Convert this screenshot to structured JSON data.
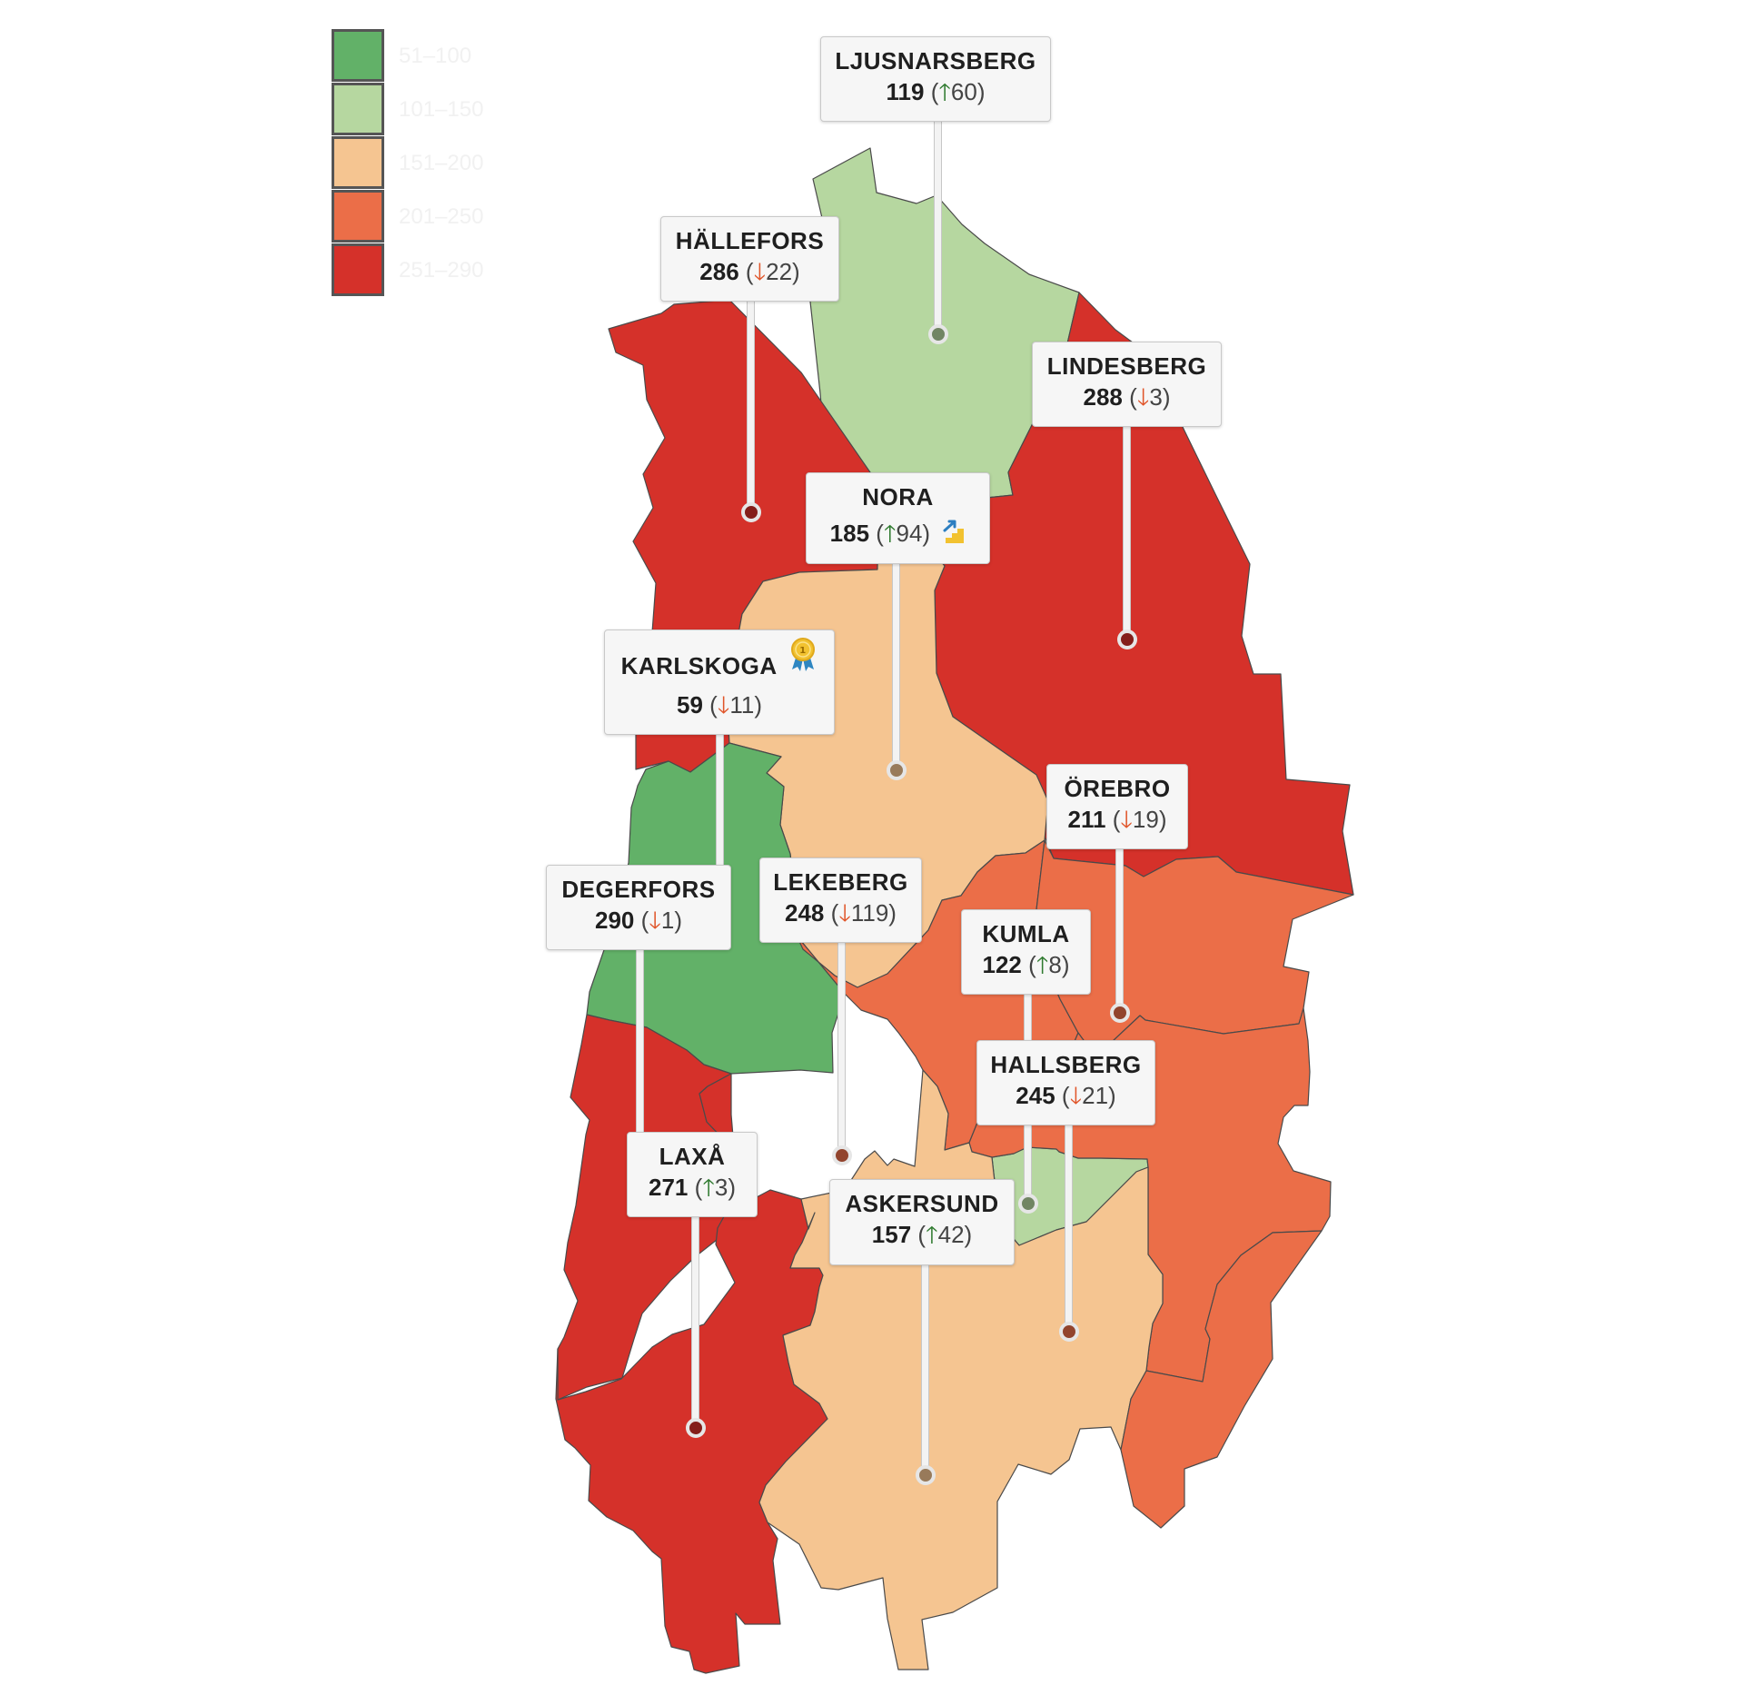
{
  "map": {
    "legend": {
      "items": [
        {
          "label": "51–100",
          "color": "#62b168"
        },
        {
          "label": "101–150",
          "color": "#b6d7a0"
        },
        {
          "label": "151–200",
          "color": "#f5c591"
        },
        {
          "label": "201–250",
          "color": "#eb6e48"
        },
        {
          "label": "251–290",
          "color": "#d5312a"
        }
      ]
    },
    "arrows": {
      "up": "🡑",
      "down": "🡓"
    },
    "icons": {
      "karlskoga": "gold-medal-icon",
      "nora": "rising-stairs-icon"
    },
    "municipalities": [
      {
        "id": "ljusnarsberg",
        "name": "LJUSNARSBERG",
        "rank": "119",
        "change": "60",
        "direction": "up",
        "color": "#b6d7a0"
      },
      {
        "id": "hallefors",
        "name": "HÄLLEFORS",
        "rank": "286",
        "change": "22",
        "direction": "down",
        "color": "#d5312a"
      },
      {
        "id": "lindesberg",
        "name": "LINDESBERG",
        "rank": "288",
        "change": "3",
        "direction": "down",
        "color": "#d5312a"
      },
      {
        "id": "nora",
        "name": "NORA",
        "rank": "185",
        "change": "94",
        "direction": "up",
        "color": "#f5c591"
      },
      {
        "id": "karlskoga",
        "name": "KARLSKOGA",
        "rank": "59",
        "change": "11",
        "direction": "down",
        "color": "#62b168"
      },
      {
        "id": "orebro",
        "name": "ÖREBRO",
        "rank": "211",
        "change": "19",
        "direction": "down",
        "color": "#eb6e48"
      },
      {
        "id": "degerfors",
        "name": "DEGERFORS",
        "rank": "290",
        "change": "1",
        "direction": "down",
        "color": "#d5312a"
      },
      {
        "id": "lekeberg",
        "name": "LEKEBERG",
        "rank": "248",
        "change": "119",
        "direction": "down",
        "color": "#eb6e48"
      },
      {
        "id": "kumla",
        "name": "KUMLA",
        "rank": "122",
        "change": "8",
        "direction": "up",
        "color": "#b6d7a0"
      },
      {
        "id": "hallsberg",
        "name": "HALLSBERG",
        "rank": "245",
        "change": "21",
        "direction": "down",
        "color": "#eb6e48"
      },
      {
        "id": "laxa",
        "name": "LAXÅ",
        "rank": "271",
        "change": "3",
        "direction": "up",
        "color": "#d5312a"
      },
      {
        "id": "askersund",
        "name": "ASKERSUND",
        "rank": "157",
        "change": "42",
        "direction": "up",
        "color": "#f5c591"
      }
    ]
  }
}
